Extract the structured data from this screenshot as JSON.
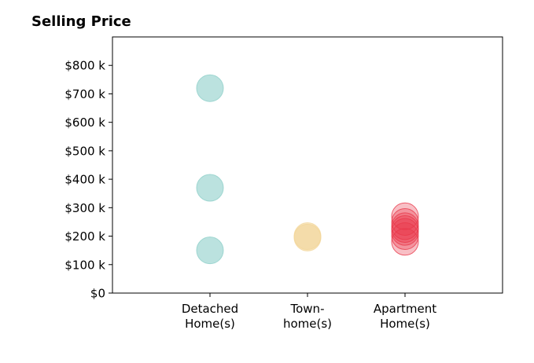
{
  "chart_data": {
    "type": "scatter",
    "title": "Selling Price",
    "categories": [
      "Detached\nHome(s)",
      "Town-\nhome(s)",
      "Apartment\nHome(s)"
    ],
    "ylim": [
      0,
      900000
    ],
    "yticks": [
      0,
      100000,
      200000,
      300000,
      400000,
      500000,
      600000,
      700000,
      800000
    ],
    "ytick_labels": [
      "$0",
      "$100 k",
      "$200 k",
      "$300 k",
      "$400 k",
      "$500 k",
      "$600 k",
      "$700 k",
      "$800 k"
    ],
    "grid": false,
    "series": [
      {
        "category": 0,
        "color": "#8ecfc9",
        "values": [
          720000,
          370000,
          150000
        ]
      },
      {
        "category": 1,
        "color": "#f2d699",
        "values": [
          200000,
          195000
        ]
      },
      {
        "category": 2,
        "color": "#e8394b",
        "values": [
          270000,
          250000,
          235000,
          225000,
          215000,
          200000,
          180000
        ]
      }
    ]
  }
}
